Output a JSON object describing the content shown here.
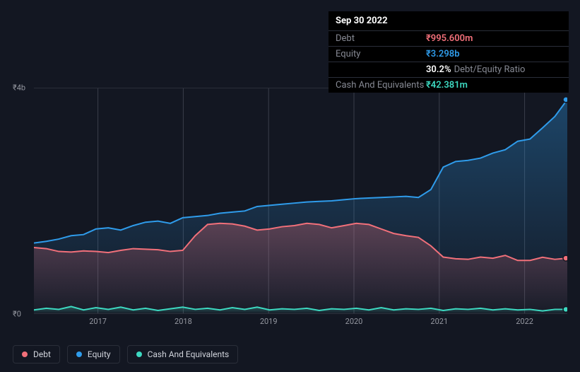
{
  "tooltip": {
    "date": "Sep 30 2022",
    "rows": [
      {
        "label": "Debt",
        "value": "₹995.600m",
        "color": "#f2707a"
      },
      {
        "label": "Equity",
        "value": "₹3.298b",
        "color": "#2f9ceb"
      },
      {
        "label": "",
        "value": "30.2%",
        "suffix": "Debt/Equity Ratio",
        "color": "#ffffff"
      },
      {
        "label": "Cash And Equivalents",
        "value": "₹42.381m",
        "color": "#3dd9c1"
      }
    ]
  },
  "chart": {
    "type": "area",
    "background_color": "#131722",
    "grid_color": "#2a2e39",
    "ylim": [
      0,
      4000
    ],
    "y_ticks": [
      {
        "v": 0,
        "label": "₹0"
      },
      {
        "v": 4000,
        "label": "₹4b"
      }
    ],
    "x_labels": [
      "2017",
      "2018",
      "2019",
      "2020",
      "2021",
      "2022"
    ],
    "x_positions_pct": [
      12,
      28,
      44,
      60,
      76,
      92
    ],
    "series": {
      "equity": {
        "color": "#2f9ceb",
        "fill_top": "rgba(47,156,235,0.35)",
        "fill_bottom": "rgba(47,156,235,0.02)",
        "values": [
          1250,
          1280,
          1320,
          1380,
          1400,
          1500,
          1520,
          1480,
          1560,
          1620,
          1640,
          1600,
          1700,
          1720,
          1740,
          1780,
          1800,
          1820,
          1900,
          1920,
          1940,
          1960,
          1980,
          1990,
          2000,
          2020,
          2040,
          2050,
          2060,
          2070,
          2080,
          2060,
          2200,
          2600,
          2700,
          2720,
          2760,
          2850,
          2910,
          3060,
          3100,
          3298,
          3500,
          3800
        ]
      },
      "debt": {
        "color": "#f2707a",
        "fill_top": "rgba(242,112,122,0.30)",
        "fill_bottom": "rgba(242,112,122,0.02)",
        "values": [
          1170,
          1150,
          1100,
          1090,
          1110,
          1100,
          1080,
          1120,
          1150,
          1140,
          1130,
          1100,
          1120,
          1380,
          1580,
          1600,
          1590,
          1550,
          1480,
          1500,
          1540,
          1560,
          1600,
          1580,
          1520,
          1560,
          1600,
          1580,
          1500,
          1420,
          1380,
          1350,
          1200,
          1000,
          970,
          960,
          1000,
          980,
          1030,
          940,
          940,
          996,
          960,
          980
        ]
      },
      "cash": {
        "color": "#3dd9c1",
        "fill_top": "rgba(61,217,193,0.30)",
        "fill_bottom": "rgba(61,217,193,0.02)",
        "values": [
          60,
          90,
          70,
          120,
          60,
          100,
          70,
          110,
          60,
          90,
          50,
          80,
          110,
          70,
          90,
          60,
          100,
          70,
          110,
          60,
          80,
          70,
          90,
          50,
          80,
          70,
          90,
          60,
          100,
          60,
          80,
          70,
          90,
          50,
          80,
          70,
          90,
          60,
          80,
          60,
          70,
          42,
          70,
          70
        ]
      }
    },
    "legend": [
      {
        "label": "Debt",
        "color": "#f2707a"
      },
      {
        "label": "Equity",
        "color": "#2f9ceb"
      },
      {
        "label": "Cash And Equivalents",
        "color": "#3dd9c1"
      }
    ]
  }
}
